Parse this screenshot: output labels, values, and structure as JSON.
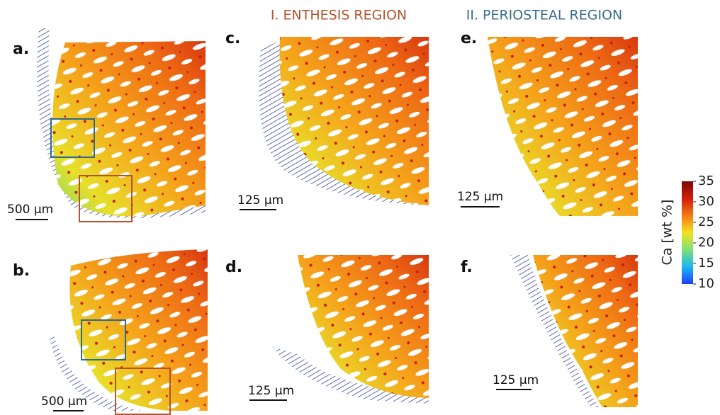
{
  "figure": {
    "headers": {
      "enthesis": "I. ENTHESIS REGION",
      "periosteal": "II. PERIOSTEAL REGION"
    },
    "panels": [
      {
        "label": "a.",
        "scale_bar": "500 µm"
      },
      {
        "label": "b.",
        "scale_bar": "500 µm"
      },
      {
        "label": "c.",
        "scale_bar": "125 µm"
      },
      {
        "label": "d.",
        "scale_bar": "125 µm"
      },
      {
        "label": "e.",
        "scale_bar": "125 µm"
      },
      {
        "label": "f.",
        "scale_bar": "125 µm"
      }
    ],
    "colorbar": {
      "label": "Ca [wt %]",
      "lim": [
        10,
        35
      ],
      "ticks": [
        10,
        15,
        20,
        25,
        30,
        35
      ],
      "colors": [
        "#1f3cff",
        "#19b8f0",
        "#7fe07a",
        "#f2e21e",
        "#f57a12",
        "#d41c0c",
        "#7a0a06"
      ]
    }
  }
}
